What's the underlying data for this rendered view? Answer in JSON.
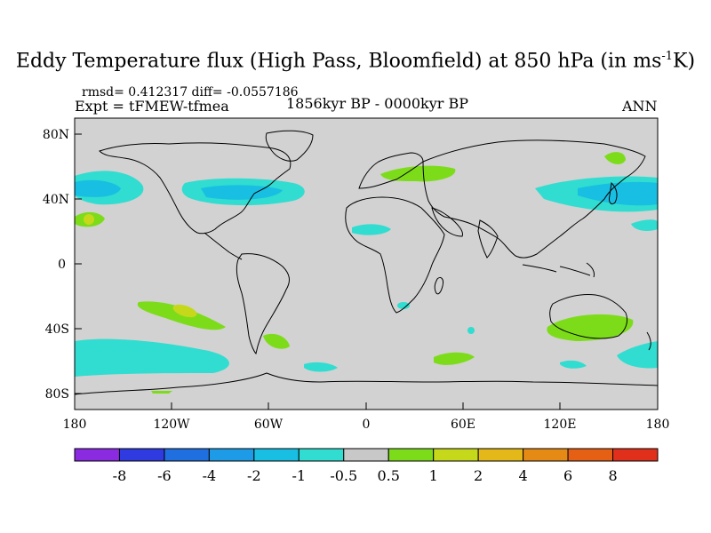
{
  "title": {
    "main": "Eddy Temperature flux (High Pass, Bloomfield) at 850 hPa (in ms",
    "superscript": "-1",
    "suffix": "K)"
  },
  "stats": "rmsd= 0.412317 diff= -0.0557186",
  "experiment": "Expt = tFMEW-tfmea",
  "period": "1856kyr BP - 0000kyr BP",
  "season": "ANN",
  "axes": {
    "lat_labels": [
      "80N",
      "40N",
      "0",
      "40S",
      "80S"
    ],
    "lon_labels": [
      "180",
      "120W",
      "60W",
      "0",
      "60E",
      "120E",
      "180"
    ]
  },
  "colorbar": {
    "tick_labels": [
      "-8",
      "-6",
      "-4",
      "-2",
      "-1",
      "-0.5",
      "0.5",
      "1",
      "2",
      "4",
      "6",
      "8"
    ],
    "colors": [
      "#8a2be2",
      "#2f3be0",
      "#1f6fe0",
      "#1d9be6",
      "#18bfe2",
      "#30ddd0",
      "#c8c8c8",
      "#7cdc1a",
      "#c6d81a",
      "#e4b818",
      "#e58a15",
      "#e55f14",
      "#e0301c"
    ]
  },
  "chart_data": {
    "type": "filled-contour-map",
    "title": "Eddy Temperature flux (High Pass, Bloomfield) at 850 hPa (in ms-1K)",
    "levels": [
      -8,
      -6,
      -4,
      -2,
      -1,
      -0.5,
      0.5,
      1,
      2,
      4,
      6,
      8
    ],
    "xlim": [
      -180,
      180
    ],
    "ylim": [
      -90,
      90
    ],
    "regions": [
      {
        "name": "north-pacific-west-anomaly",
        "sign": "negative",
        "min_level": -1
      },
      {
        "name": "north-atlantic-anomaly",
        "sign": "negative",
        "min_level": -1
      },
      {
        "name": "south-pacific-anomaly",
        "sign": "positive",
        "max_level": 2
      },
      {
        "name": "australia-anomaly",
        "sign": "positive",
        "max_level": 1
      },
      {
        "name": "southern-ocean-anomaly",
        "sign": "negative",
        "min_level": -1
      }
    ]
  }
}
